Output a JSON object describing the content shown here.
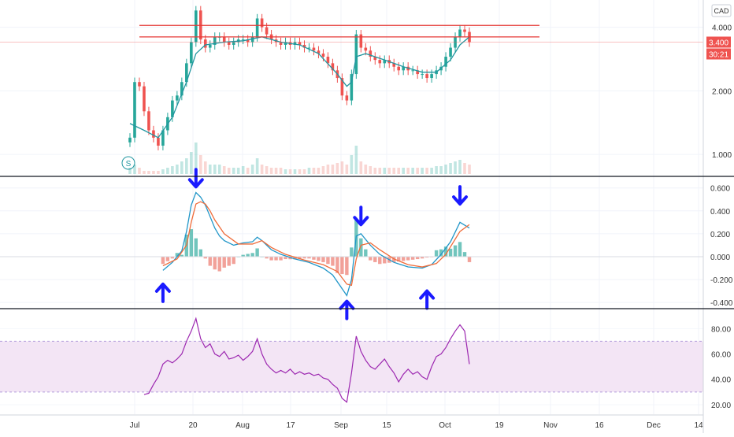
{
  "header": {
    "currency_badge": "CAD"
  },
  "colors": {
    "candle_up": "#26a69a",
    "candle_down": "#ef5350",
    "resistance_line": "#e53935",
    "price_line_bg": "#ef5350",
    "ma_line": "#2196a0",
    "macd_line": "#2196c8",
    "signal_line": "#ef6c3a",
    "hist_pos": "#4db6ac",
    "hist_neg": "#ef8a80",
    "rsi_line": "#9c27b0",
    "rsi_band": "#f3e5f5",
    "arrow": "#1a1aff",
    "grid": "#f0f3fa",
    "separator": "#131722"
  },
  "chart_data": [
    {
      "type": "candlestick",
      "panel": "price",
      "y_scale": "log",
      "ylim": [
        0.85,
        5.2
      ],
      "y_ticks": [
        "4.000",
        "2.000",
        "1.000"
      ],
      "y_tick_values": [
        4.0,
        2.0,
        1.0
      ],
      "x_ticks": [
        "Jul",
        "20",
        "Aug",
        "17",
        "Sep",
        "15",
        "Oct",
        "19",
        "Nov",
        "16",
        "Dec",
        "14"
      ],
      "current_price_label": "3.400",
      "current_price": 3.4,
      "countdown_label": "30:21",
      "resistance_levels": [
        4.08,
        3.6
      ],
      "series_close": [
        [
          0,
          1.2
        ],
        [
          1,
          2.2
        ],
        [
          2,
          2.1
        ],
        [
          3,
          1.6
        ],
        [
          4,
          1.3
        ],
        [
          5,
          1.2
        ],
        [
          6,
          1.1
        ],
        [
          7,
          1.3
        ],
        [
          8,
          1.5
        ],
        [
          9,
          1.8
        ],
        [
          10,
          1.9
        ],
        [
          11,
          2.2
        ],
        [
          12,
          2.7
        ],
        [
          13,
          3.4
        ],
        [
          14,
          4.8
        ],
        [
          15,
          3.5
        ],
        [
          16,
          3.2
        ],
        [
          17,
          3.3
        ],
        [
          18,
          3.6
        ],
        [
          19,
          3.6
        ],
        [
          20,
          3.4
        ],
        [
          21,
          3.3
        ],
        [
          22,
          3.4
        ],
        [
          23,
          3.5
        ],
        [
          24,
          3.5
        ],
        [
          25,
          3.4
        ],
        [
          26,
          3.6
        ],
        [
          27,
          4.4
        ],
        [
          28,
          4.0
        ],
        [
          29,
          3.7
        ],
        [
          30,
          3.5
        ],
        [
          31,
          3.4
        ],
        [
          32,
          3.3
        ],
        [
          33,
          3.4
        ],
        [
          34,
          3.3
        ],
        [
          35,
          3.4
        ],
        [
          36,
          3.3
        ],
        [
          37,
          3.2
        ],
        [
          38,
          3.2
        ],
        [
          39,
          3.1
        ],
        [
          40,
          3.0
        ],
        [
          41,
          2.9
        ],
        [
          42,
          2.7
        ],
        [
          43,
          2.5
        ],
        [
          44,
          2.3
        ],
        [
          45,
          1.9
        ],
        [
          46,
          1.8
        ],
        [
          47,
          2.4
        ],
        [
          48,
          3.7
        ],
        [
          49,
          3.2
        ],
        [
          50,
          3.1
        ],
        [
          51,
          2.9
        ],
        [
          52,
          2.8
        ],
        [
          53,
          2.7
        ],
        [
          54,
          2.8
        ],
        [
          55,
          2.7
        ],
        [
          56,
          2.6
        ],
        [
          57,
          2.5
        ],
        [
          58,
          2.6
        ],
        [
          59,
          2.5
        ],
        [
          60,
          2.5
        ],
        [
          61,
          2.4
        ],
        [
          62,
          2.4
        ],
        [
          63,
          2.3
        ],
        [
          64,
          2.4
        ],
        [
          65,
          2.5
        ],
        [
          66,
          2.6
        ],
        [
          67,
          2.9
        ],
        [
          68,
          3.2
        ],
        [
          69,
          3.6
        ],
        [
          70,
          3.9
        ],
        [
          71,
          3.8
        ],
        [
          72,
          3.4
        ]
      ],
      "moving_average": [
        [
          0,
          1.4
        ],
        [
          3,
          1.3
        ],
        [
          6,
          1.2
        ],
        [
          9,
          1.5
        ],
        [
          12,
          2.2
        ],
        [
          14,
          3.0
        ],
        [
          16,
          3.3
        ],
        [
          20,
          3.4
        ],
        [
          24,
          3.45
        ],
        [
          28,
          3.6
        ],
        [
          32,
          3.4
        ],
        [
          36,
          3.3
        ],
        [
          40,
          3.0
        ],
        [
          44,
          2.4
        ],
        [
          46,
          2.1
        ],
        [
          47,
          2.2
        ],
        [
          48,
          2.9
        ],
        [
          50,
          3.0
        ],
        [
          54,
          2.8
        ],
        [
          58,
          2.6
        ],
        [
          62,
          2.45
        ],
        [
          65,
          2.45
        ],
        [
          68,
          2.8
        ],
        [
          70,
          3.3
        ],
        [
          72,
          3.6
        ]
      ],
      "volume_relative": [
        0.2,
        0.3,
        0.2,
        0.1,
        0.1,
        0.1,
        0.1,
        0.15,
        0.2,
        0.25,
        0.3,
        0.4,
        0.5,
        0.7,
        1.0,
        0.6,
        0.4,
        0.3,
        0.3,
        0.3,
        0.25,
        0.2,
        0.2,
        0.2,
        0.25,
        0.2,
        0.3,
        0.5,
        0.3,
        0.25,
        0.2,
        0.2,
        0.2,
        0.15,
        0.15,
        0.15,
        0.15,
        0.15,
        0.2,
        0.2,
        0.2,
        0.25,
        0.3,
        0.3,
        0.35,
        0.4,
        0.3,
        0.6,
        0.9,
        0.4,
        0.3,
        0.25,
        0.2,
        0.2,
        0.2,
        0.2,
        0.2,
        0.2,
        0.2,
        0.2,
        0.2,
        0.2,
        0.2,
        0.2,
        0.2,
        0.25,
        0.25,
        0.3,
        0.35,
        0.4,
        0.45,
        0.35,
        0.3
      ],
      "annotation_badge": "S"
    },
    {
      "type": "macd",
      "panel": "macd",
      "ylim": [
        -0.42,
        0.66
      ],
      "y_ticks": [
        "0.600",
        "0.400",
        "0.200",
        "0.000",
        "-0.200",
        "-0.400"
      ],
      "y_tick_values": [
        0.6,
        0.4,
        0.2,
        0.0,
        -0.2,
        -0.4
      ],
      "macd": [
        [
          7,
          -0.12
        ],
        [
          9,
          -0.05
        ],
        [
          11,
          0.05
        ],
        [
          12,
          0.22
        ],
        [
          13,
          0.45
        ],
        [
          14,
          0.56
        ],
        [
          15,
          0.52
        ],
        [
          16,
          0.45
        ],
        [
          17,
          0.35
        ],
        [
          18,
          0.25
        ],
        [
          19,
          0.18
        ],
        [
          20,
          0.14
        ],
        [
          22,
          0.1
        ],
        [
          24,
          0.12
        ],
        [
          26,
          0.13
        ],
        [
          27,
          0.17
        ],
        [
          28,
          0.14
        ],
        [
          30,
          0.06
        ],
        [
          32,
          0.02
        ],
        [
          35,
          -0.02
        ],
        [
          38,
          -0.05
        ],
        [
          41,
          -0.1
        ],
        [
          43,
          -0.16
        ],
        [
          45,
          -0.28
        ],
        [
          46,
          -0.34
        ],
        [
          47,
          -0.2
        ],
        [
          48,
          0.18
        ],
        [
          49,
          0.2
        ],
        [
          51,
          0.1
        ],
        [
          53,
          0.02
        ],
        [
          56,
          -0.05
        ],
        [
          59,
          -0.09
        ],
        [
          62,
          -0.1
        ],
        [
          64,
          -0.07
        ],
        [
          66,
          0.02
        ],
        [
          68,
          0.13
        ],
        [
          70,
          0.3
        ],
        [
          72,
          0.25
        ]
      ],
      "signal": [
        [
          7,
          -0.08
        ],
        [
          10,
          -0.02
        ],
        [
          12,
          0.1
        ],
        [
          13,
          0.3
        ],
        [
          14,
          0.46
        ],
        [
          15,
          0.48
        ],
        [
          16,
          0.46
        ],
        [
          17,
          0.4
        ],
        [
          18,
          0.32
        ],
        [
          20,
          0.2
        ],
        [
          23,
          0.11
        ],
        [
          26,
          0.11
        ],
        [
          28,
          0.14
        ],
        [
          30,
          0.08
        ],
        [
          33,
          0.02
        ],
        [
          37,
          -0.03
        ],
        [
          41,
          -0.07
        ],
        [
          44,
          -0.13
        ],
        [
          46,
          -0.24
        ],
        [
          47,
          -0.25
        ],
        [
          48,
          -0.02
        ],
        [
          49,
          0.1
        ],
        [
          51,
          0.12
        ],
        [
          53,
          0.06
        ],
        [
          56,
          -0.02
        ],
        [
          59,
          -0.07
        ],
        [
          62,
          -0.09
        ],
        [
          65,
          -0.06
        ],
        [
          67,
          0.02
        ],
        [
          70,
          0.22
        ],
        [
          72,
          0.28
        ]
      ],
      "arrows": [
        {
          "direction": "up",
          "at": 7,
          "value": -0.24
        },
        {
          "direction": "down",
          "at": 14,
          "value": 0.61
        },
        {
          "direction": "up",
          "at": 46,
          "value": -0.39
        },
        {
          "direction": "down",
          "at": 49,
          "value": 0.28
        },
        {
          "direction": "up",
          "at": 63,
          "value": -0.3
        },
        {
          "direction": "down",
          "at": 70,
          "value": 0.46
        }
      ]
    },
    {
      "type": "line",
      "panel": "rsi",
      "ylim": [
        15,
        92
      ],
      "y_ticks": [
        "80.00",
        "60.00",
        "40.00",
        "20.00"
      ],
      "y_tick_values": [
        80,
        60,
        40,
        20
      ],
      "band": [
        30,
        70
      ],
      "rsi": [
        [
          3,
          28
        ],
        [
          4,
          29
        ],
        [
          5,
          36
        ],
        [
          6,
          42
        ],
        [
          7,
          52
        ],
        [
          8,
          55
        ],
        [
          9,
          53
        ],
        [
          10,
          56
        ],
        [
          11,
          60
        ],
        [
          12,
          70
        ],
        [
          13,
          78
        ],
        [
          14,
          88
        ],
        [
          15,
          72
        ],
        [
          16,
          65
        ],
        [
          17,
          68
        ],
        [
          18,
          60
        ],
        [
          19,
          58
        ],
        [
          20,
          62
        ],
        [
          21,
          56
        ],
        [
          22,
          57
        ],
        [
          23,
          59
        ],
        [
          24,
          55
        ],
        [
          25,
          58
        ],
        [
          26,
          62
        ],
        [
          27,
          72
        ],
        [
          28,
          60
        ],
        [
          29,
          52
        ],
        [
          30,
          48
        ],
        [
          31,
          45
        ],
        [
          32,
          47
        ],
        [
          33,
          45
        ],
        [
          34,
          48
        ],
        [
          35,
          44
        ],
        [
          36,
          46
        ],
        [
          37,
          44
        ],
        [
          38,
          45
        ],
        [
          39,
          43
        ],
        [
          40,
          44
        ],
        [
          41,
          41
        ],
        [
          42,
          40
        ],
        [
          43,
          36
        ],
        [
          44,
          33
        ],
        [
          45,
          25
        ],
        [
          46,
          22
        ],
        [
          47,
          45
        ],
        [
          48,
          74
        ],
        [
          49,
          62
        ],
        [
          50,
          55
        ],
        [
          51,
          50
        ],
        [
          52,
          48
        ],
        [
          53,
          52
        ],
        [
          54,
          56
        ],
        [
          55,
          50
        ],
        [
          56,
          45
        ],
        [
          57,
          38
        ],
        [
          58,
          44
        ],
        [
          59,
          48
        ],
        [
          60,
          44
        ],
        [
          61,
          46
        ],
        [
          62,
          42
        ],
        [
          63,
          40
        ],
        [
          64,
          50
        ],
        [
          65,
          58
        ],
        [
          66,
          60
        ],
        [
          67,
          65
        ],
        [
          68,
          72
        ],
        [
          69,
          78
        ],
        [
          70,
          83
        ],
        [
          71,
          78
        ],
        [
          72,
          52
        ]
      ]
    }
  ]
}
